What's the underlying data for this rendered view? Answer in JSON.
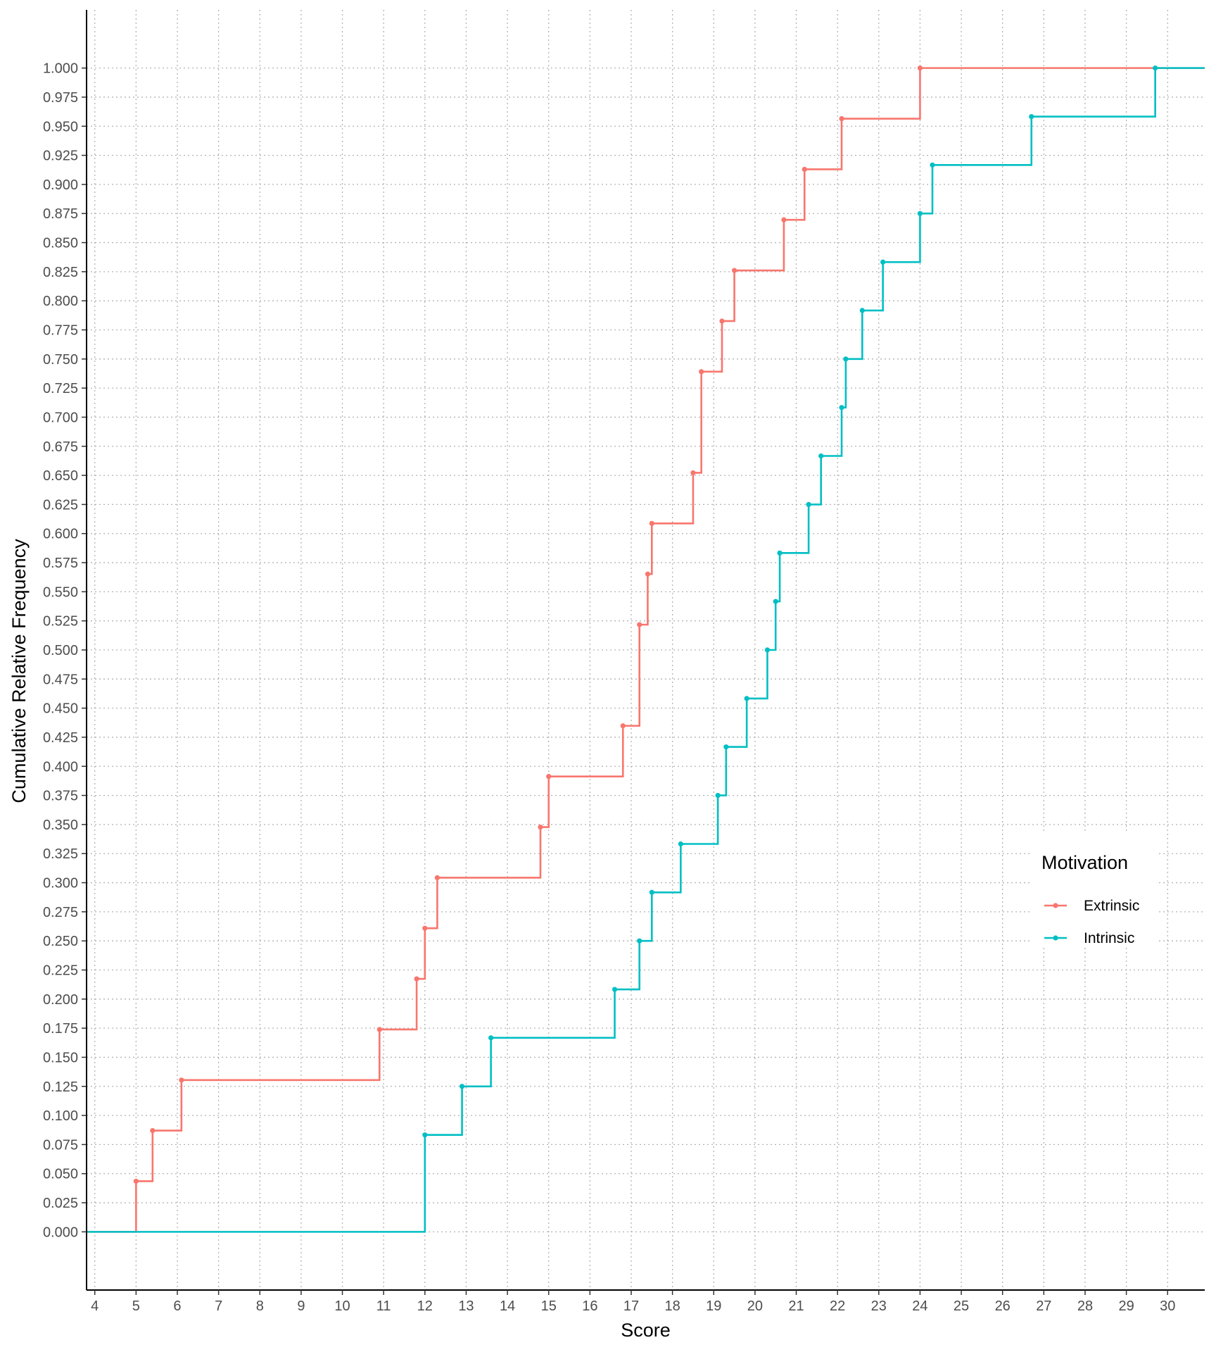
{
  "chart_data": {
    "type": "line",
    "subtype": "step-ecdf",
    "xlabel": "Score",
    "ylabel": "Cumulative Relative Frequency",
    "xlim": [
      3.8,
      30.9
    ],
    "ylim": [
      -0.05,
      1.05
    ],
    "x_ticks": [
      4,
      5,
      6,
      7,
      8,
      9,
      10,
      11,
      12,
      13,
      14,
      15,
      16,
      17,
      18,
      19,
      20,
      21,
      22,
      23,
      24,
      25,
      26,
      27,
      28,
      29,
      30
    ],
    "x_tick_labels": [
      "4",
      "5",
      "6",
      "7",
      "8",
      "9",
      "10",
      "11",
      "12",
      "13",
      "14",
      "15",
      "16",
      "17",
      "18",
      "19",
      "20",
      "21",
      "22",
      "23",
      "24",
      "25",
      "26",
      "27",
      "28",
      "29",
      "30"
    ],
    "y_ticks": [
      0,
      0.025,
      0.05,
      0.075,
      0.1,
      0.125,
      0.15,
      0.175,
      0.2,
      0.225,
      0.25,
      0.275,
      0.3,
      0.325,
      0.35,
      0.375,
      0.4,
      0.425,
      0.45,
      0.475,
      0.5,
      0.525,
      0.55,
      0.575,
      0.6,
      0.625,
      0.65,
      0.675,
      0.7,
      0.725,
      0.75,
      0.775,
      0.8,
      0.825,
      0.85,
      0.875,
      0.9,
      0.925,
      0.95,
      0.975,
      1.0
    ],
    "y_tick_labels": [
      "0.000",
      "0.025",
      "0.050",
      "0.075",
      "0.100",
      "0.125",
      "0.150",
      "0.175",
      "0.200",
      "0.225",
      "0.250",
      "0.275",
      "0.300",
      "0.325",
      "0.350",
      "0.375",
      "0.400",
      "0.425",
      "0.450",
      "0.475",
      "0.500",
      "0.525",
      "0.550",
      "0.575",
      "0.600",
      "0.625",
      "0.650",
      "0.675",
      "0.700",
      "0.725",
      "0.750",
      "0.775",
      "0.800",
      "0.825",
      "0.850",
      "0.875",
      "0.900",
      "0.925",
      "0.950",
      "0.975",
      "1.000"
    ],
    "grid": true,
    "legend": {
      "title": "Motivation",
      "position": "right"
    },
    "series": [
      {
        "name": "Extrinsic",
        "color": "#F8766D",
        "x": [
          5.0,
          5.4,
          6.1,
          10.9,
          11.8,
          12.0,
          12.3,
          14.8,
          15.0,
          16.8,
          17.2,
          17.4,
          17.5,
          18.5,
          18.7,
          19.2,
          19.5,
          20.7,
          21.2,
          22.1,
          24.0
        ],
        "y": [
          0.0435,
          0.087,
          0.1304,
          0.1739,
          0.2174,
          0.2609,
          0.3043,
          0.3478,
          0.3913,
          0.4348,
          0.5217,
          0.5652,
          0.6087,
          0.6522,
          0.7391,
          0.7826,
          0.8261,
          0.8696,
          0.913,
          0.9565,
          1.0
        ]
      },
      {
        "name": "Intrinsic",
        "color": "#00BFC4",
        "x": [
          12.0,
          12.9,
          13.6,
          16.6,
          17.2,
          17.5,
          18.2,
          19.1,
          19.3,
          19.8,
          20.3,
          20.5,
          20.6,
          21.3,
          21.6,
          22.1,
          22.2,
          22.6,
          23.1,
          24.0,
          24.3,
          26.7,
          29.7
        ],
        "y": [
          0.0833,
          0.125,
          0.1667,
          0.2083,
          0.25,
          0.2917,
          0.3333,
          0.375,
          0.4167,
          0.4583,
          0.5,
          0.5417,
          0.5833,
          0.625,
          0.6667,
          0.7083,
          0.75,
          0.7917,
          0.8333,
          0.875,
          0.9167,
          0.9583,
          1.0
        ]
      }
    ]
  }
}
